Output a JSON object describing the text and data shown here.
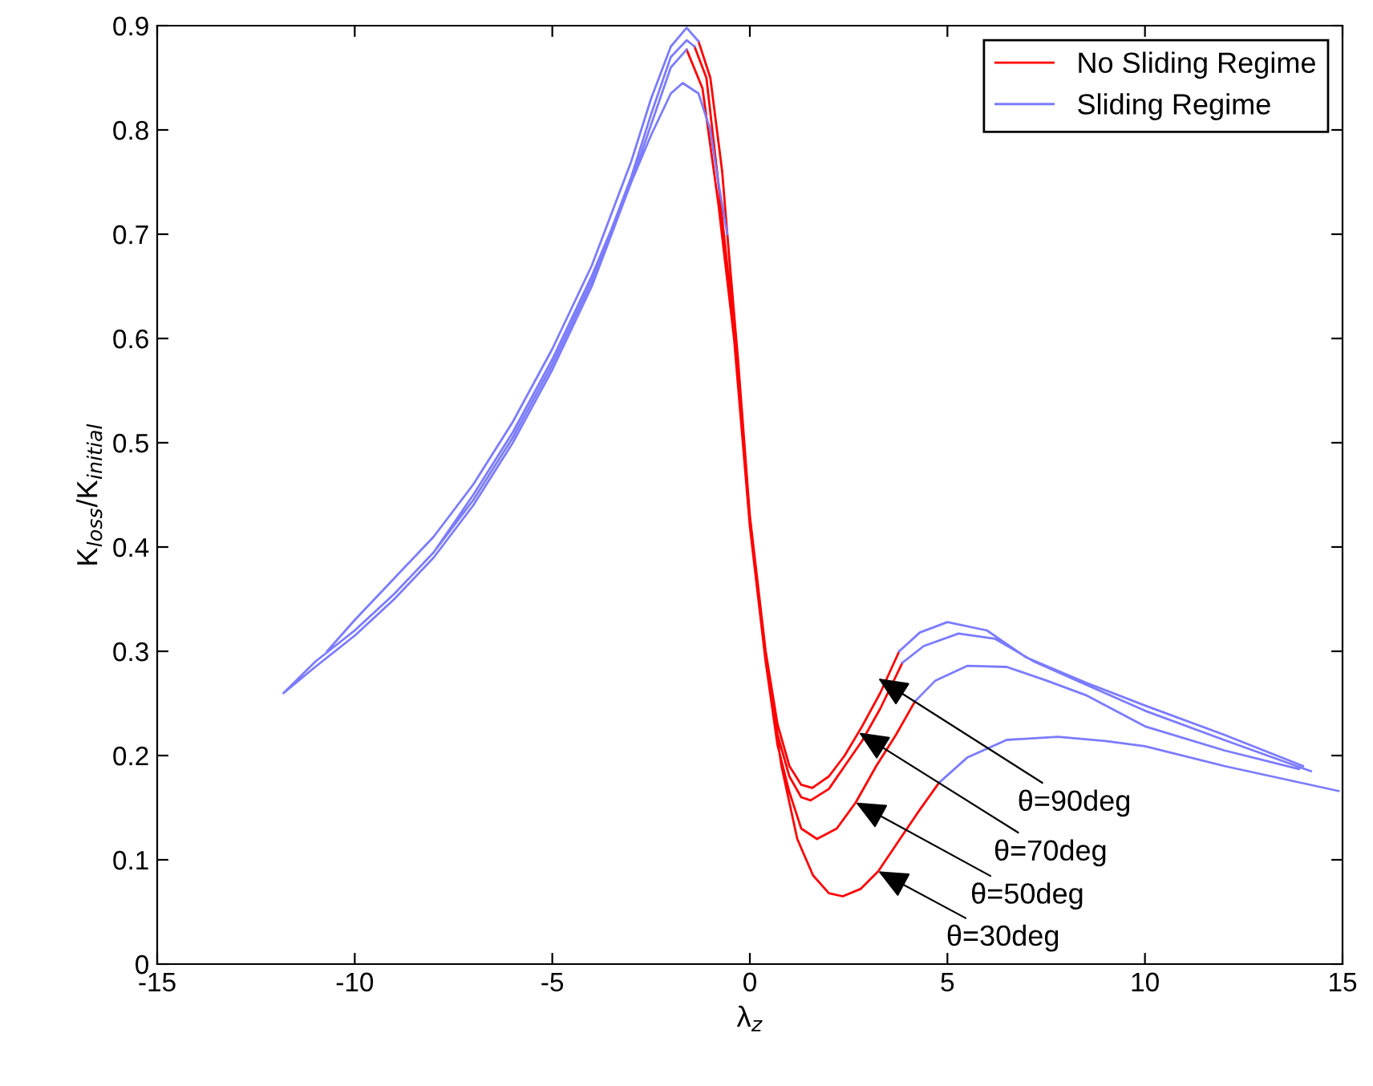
{
  "chart_data": {
    "type": "line",
    "xlabel": "λ$_{z}$",
    "ylabel": "K$_{loss}$/K$_{initial}$",
    "xlim": [
      -15,
      15
    ],
    "xticks": [
      -15,
      -10,
      -5,
      0,
      5,
      10,
      15
    ],
    "ylim": [
      0,
      0.9
    ],
    "yticks": [
      0,
      0.1,
      0.2,
      0.3,
      0.4,
      0.5,
      0.6,
      0.7,
      0.8,
      0.9
    ],
    "grid": false,
    "legend": "top right",
    "line_style": "solid",
    "marker": "none",
    "series": [
      {
        "name": "No Sliding Regime",
        "color": "#ff0000",
        "x": [
          -1.3,
          -1.0,
          -0.7,
          -0.4,
          0,
          0.4,
          0.7,
          1.0,
          1.3,
          1.58,
          2.0,
          2.4,
          2.84,
          3.3,
          3.78,
          null,
          -1.4,
          -1.1,
          -0.8,
          -0.4,
          0,
          0.4,
          0.7,
          1.0,
          1.3,
          1.54,
          2.0,
          2.4,
          2.84,
          3.3,
          3.86,
          null,
          -1.6,
          -1.2,
          -0.8,
          -0.4,
          0,
          0.4,
          0.7,
          1.0,
          1.3,
          1.7,
          2.2,
          2.68,
          3.2,
          3.7,
          4.18,
          null,
          -0.57,
          -0.3,
          0,
          0.4,
          0.8,
          1.2,
          1.6,
          2.0,
          2.35,
          2.8,
          3.25,
          3.8,
          4.3,
          4.79
        ],
        "values": [
          0.885,
          0.85,
          0.76,
          0.62,
          0.43,
          0.3,
          0.23,
          0.19,
          0.172,
          0.169,
          0.18,
          0.2,
          0.228,
          0.26,
          0.3,
          null,
          0.88,
          0.85,
          0.75,
          0.61,
          0.42,
          0.29,
          0.22,
          0.18,
          0.16,
          0.157,
          0.168,
          0.19,
          0.214,
          0.245,
          0.289,
          null,
          0.877,
          0.84,
          0.73,
          0.6,
          0.42,
          0.29,
          0.21,
          0.165,
          0.13,
          0.12,
          0.13,
          0.155,
          0.19,
          0.22,
          0.252,
          null,
          0.7,
          0.58,
          0.43,
          0.29,
          0.19,
          0.12,
          0.085,
          0.068,
          0.065,
          0.072,
          0.089,
          0.12,
          0.148,
          0.174
        ]
      },
      {
        "name": "Sliding Regime",
        "color": "#7b7bff",
        "x": [
          -10.7,
          -10,
          -9,
          -8,
          -7,
          -6,
          -5,
          -4,
          -3,
          -2.5,
          -2,
          -1.6,
          -1.3,
          null,
          -11.8,
          -11,
          -10,
          -9,
          -8,
          -7,
          -6,
          -5,
          -4,
          -3,
          -2.5,
          -2,
          -1.6,
          -1.4,
          null,
          -11.8,
          -11,
          -10,
          -9,
          -8,
          -7,
          -6,
          -5,
          -4,
          -3,
          -2.5,
          -2,
          -1.6,
          null,
          -11.8,
          -11,
          -10,
          -9,
          -8,
          -7,
          -6,
          -5,
          -4,
          -3,
          -2.5,
          -2,
          -1.7,
          -1.3,
          -1,
          -0.8,
          -0.57,
          null,
          3.78,
          4.3,
          5.0,
          6.0,
          7.0,
          8.5,
          10,
          12,
          14.0,
          null,
          3.86,
          4.4,
          5.28,
          6.2,
          7.2,
          8.5,
          10,
          12,
          14.2,
          null,
          4.18,
          4.7,
          5.5,
          6.5,
          7.5,
          8.5,
          10,
          12,
          13.9,
          null,
          4.79,
          5.5,
          6.5,
          7.8,
          9,
          10,
          12,
          14.9
        ],
        "values": [
          0.3,
          0.33,
          0.37,
          0.41,
          0.46,
          0.52,
          0.59,
          0.67,
          0.77,
          0.83,
          0.88,
          0.898,
          0.885,
          null,
          0.26,
          0.29,
          0.32,
          0.355,
          0.395,
          0.445,
          0.505,
          0.575,
          0.655,
          0.755,
          0.815,
          0.87,
          0.886,
          0.88,
          null,
          0.26,
          0.285,
          0.315,
          0.35,
          0.39,
          0.44,
          0.5,
          0.57,
          0.65,
          0.75,
          0.805,
          0.86,
          0.877,
          null,
          0.26,
          0.29,
          0.32,
          0.355,
          0.395,
          0.45,
          0.51,
          0.58,
          0.66,
          0.75,
          0.795,
          0.835,
          0.845,
          0.835,
          0.8,
          0.75,
          0.7,
          null,
          0.3,
          0.318,
          0.328,
          0.32,
          0.294,
          0.27,
          0.248,
          0.22,
          0.19,
          null,
          0.289,
          0.305,
          0.317,
          0.312,
          0.29,
          0.268,
          0.243,
          0.215,
          0.185,
          null,
          0.252,
          0.272,
          0.286,
          0.285,
          0.272,
          0.258,
          0.228,
          0.205,
          0.187,
          null,
          0.174,
          0.198,
          0.215,
          0.218,
          0.214,
          0.209,
          0.19,
          0.166
        ]
      }
    ],
    "annotations": [
      {
        "text": "θ=90deg",
        "x": 3.25,
        "y": 0.274
      },
      {
        "text": "θ=70deg",
        "x": 2.76,
        "y": 0.222
      },
      {
        "text": "θ=50deg",
        "x": 2.68,
        "y": 0.155
      },
      {
        "text": "θ=30deg",
        "x": 3.25,
        "y": 0.089
      }
    ]
  }
}
